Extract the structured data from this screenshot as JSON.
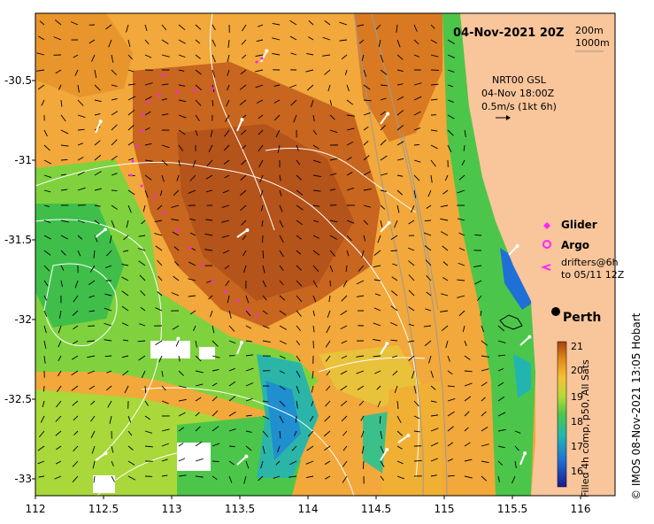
{
  "header": {
    "date": "04-Nov-2021 20Z"
  },
  "depth_labels": [
    "200m",
    "1000m"
  ],
  "velocity": {
    "line1": "NRT00 GSL",
    "line2": "04-Nov 18:00Z",
    "line3": "0.5m/s (1kt 6h)"
  },
  "legend": {
    "glider": "Glider",
    "argo": "Argo",
    "drifters1": "drifters@6h",
    "drifters2": "to 05/11 12Z"
  },
  "city": "Perth",
  "axes": {
    "y_ticks": [
      "-30.5",
      "-31",
      "-31.5",
      "-32",
      "-32.5",
      "-33"
    ],
    "x_ticks": [
      "112",
      "112.5",
      "113",
      "113.5",
      "114",
      "114.5",
      "115",
      "115.5",
      "116"
    ]
  },
  "colorbar": {
    "title": "Filled 4h comp, p50, All Sats",
    "ticks": [
      "21",
      "20",
      "19",
      "18",
      "17",
      "16"
    ]
  },
  "credit": "IMOS 08-Nov-2021 13:05 Hobart",
  "colors": {
    "land": "#f9c59b",
    "glider": "#ff22ff",
    "argo": "#ff22ff",
    "drifter": "#ff22ff"
  }
}
